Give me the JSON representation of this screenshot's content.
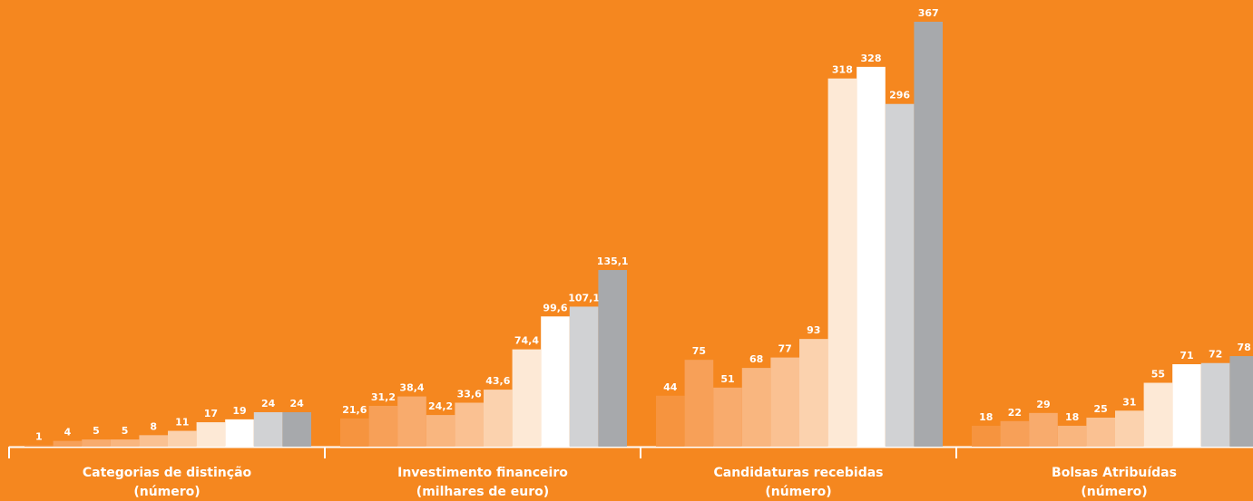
{
  "chart_data": [
    {
      "type": "bar",
      "title": "Categorias de distinção",
      "subtitle": "(número)",
      "values": [
        1,
        4,
        5,
        5,
        8,
        11,
        17,
        19,
        24,
        24
      ],
      "ylim": [
        0,
        296
      ],
      "colors": [
        "#f6943f",
        "#f7a058",
        "#f8ab6d",
        "#f9b67f",
        "#fac192",
        "#fbd2ae",
        "#fde9d6",
        "#ffffff",
        "#d1d2d4",
        "#a7a9ac"
      ]
    },
    {
      "type": "bar",
      "title": "Investimento financeiro",
      "subtitle": "(milhares de euro)",
      "values": [
        21.6,
        31.2,
        38.4,
        24.2,
        33.6,
        43.6,
        74.4,
        99.6,
        107.1,
        135.1
      ],
      "value_labels": [
        "21,6",
        "31,2",
        "38,4",
        "24,2",
        "33,6",
        "43,6",
        "74,4",
        "99,6",
        "107,1",
        "135,1"
      ],
      "ylim": [
        0,
        325
      ],
      "colors": [
        "#f6943f",
        "#f7a058",
        "#f8ab6d",
        "#f9b67f",
        "#fac192",
        "#fbd2ae",
        "#fde9d6",
        "#ffffff",
        "#d1d2d4",
        "#a7a9ac"
      ]
    },
    {
      "type": "bar",
      "title": "Candidaturas recebidas",
      "subtitle": "(número)",
      "values": [
        44,
        75,
        51,
        68,
        77,
        93,
        318,
        328,
        296,
        367
      ],
      "ylim": [
        0,
        367
      ],
      "colors": [
        "#f6943f",
        "#f7a058",
        "#f8ab6d",
        "#f9b67f",
        "#fac192",
        "#fbd2ae",
        "#fde9d6",
        "#ffffff",
        "#d1d2d4",
        "#a7a9ac"
      ]
    },
    {
      "type": "bar",
      "title": "Bolsas Atribuídas",
      "subtitle": "(número)",
      "values": [
        18,
        22,
        29,
        18,
        25,
        31,
        55,
        71,
        72,
        78
      ],
      "ylim": [
        0,
        366
      ],
      "colors": [
        "#f6943f",
        "#f7a058",
        "#f8ab6d",
        "#f9b67f",
        "#fac192",
        "#fbd2ae",
        "#fde9d6",
        "#ffffff",
        "#d1d2d4",
        "#a7a9ac"
      ]
    }
  ]
}
